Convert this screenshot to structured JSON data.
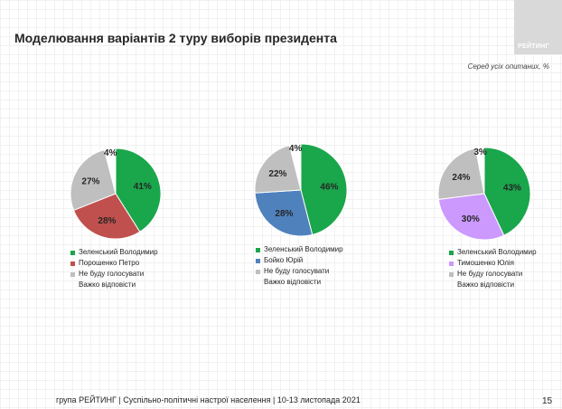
{
  "title": "Моделювання варіантів 2 туру виборів президента",
  "subtitle": "Серед усіх опитаних, %",
  "logo_text": "РЕЙТИНГ",
  "footer": "група РЕЙТИНГ | Суспільно-політичні настрої населення | 10-13 листопада 2021",
  "page_number": "15",
  "colors": {
    "zelensky": "#1aa64b",
    "poroshenko": "#c0504d",
    "boyko": "#4f81bd",
    "tymoshenko": "#cc99ff",
    "wont_vote": "#bfbfbf",
    "hard_to_say": "#ffffff"
  },
  "chart_data": [
    {
      "type": "pie",
      "slices": [
        {
          "label": "Зеленський Володимир",
          "value": 41,
          "label_text": "41%",
          "color": "#1aa64b"
        },
        {
          "label": "Порошенко Петро",
          "value": 28,
          "label_text": "28%",
          "color": "#c0504d"
        },
        {
          "label": "Не буду голосувати",
          "value": 27,
          "label_text": "27%",
          "color": "#bfbfbf"
        },
        {
          "label": "Важко відповісти",
          "value": 4,
          "label_text": "4%",
          "color": "#ffffff"
        }
      ]
    },
    {
      "type": "pie",
      "slices": [
        {
          "label": "Зеленський Володимир",
          "value": 46,
          "label_text": "46%",
          "color": "#1aa64b"
        },
        {
          "label": "Бойко Юрій",
          "value": 28,
          "label_text": "28%",
          "color": "#4f81bd"
        },
        {
          "label": "Не буду голосувати",
          "value": 22,
          "label_text": "22%",
          "color": "#bfbfbf"
        },
        {
          "label": "Важко відповісти",
          "value": 4,
          "label_text": "4%",
          "color": "#ffffff"
        }
      ]
    },
    {
      "type": "pie",
      "slices": [
        {
          "label": "Зеленський Володимир",
          "value": 43,
          "label_text": "43%",
          "color": "#1aa64b"
        },
        {
          "label": "Тимошенко Юлія",
          "value": 30,
          "label_text": "30%",
          "color": "#cc99ff"
        },
        {
          "label": "Не буду голосувати",
          "value": 24,
          "label_text": "24%",
          "color": "#bfbfbf"
        },
        {
          "label": "Важко відповісти",
          "value": 3,
          "label_text": "3%",
          "color": "#ffffff"
        }
      ]
    }
  ]
}
